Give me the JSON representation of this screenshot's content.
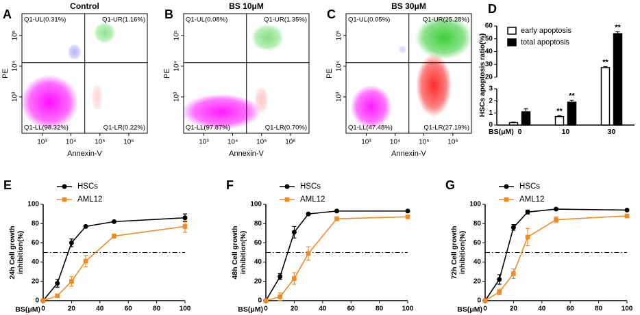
{
  "chart_data": [
    {
      "panel": "A",
      "type": "quadrant",
      "title": "Control",
      "xlabel": "Annexin-V",
      "ylabel": "PE",
      "xscale": "log",
      "yscale": "log",
      "xlim": [
        200,
        4400000
      ],
      "ylim": [
        66,
        510000
      ],
      "xticks": [
        {
          "value": 1000,
          "label": "10³"
        },
        {
          "value": 10000,
          "label": "10⁴"
        },
        {
          "value": 100000,
          "label": "10⁵"
        },
        {
          "value": 1000000,
          "label": "10⁶"
        }
      ],
      "yticks": [
        {
          "value": 1000,
          "label": "10³"
        },
        {
          "value": 10000,
          "label": "10⁴"
        },
        {
          "value": 100000,
          "label": "10⁵"
        }
      ],
      "gate": {
        "x": 30000,
        "y": 13000
      },
      "quadrants": {
        "UL": "Q1-UL(0.31%)",
        "UR": "Q1-UR(1.16%)",
        "LL": "Q1-LL(98.32%)",
        "LR": "Q1-LR(0.22%)"
      },
      "colors": {
        "UL": "#3030ff",
        "UR": "#33cc33",
        "LL": "#ff00ff",
        "LR": "#ff2020"
      }
    },
    {
      "panel": "B",
      "type": "quadrant",
      "title": "BS  10μM",
      "xlabel": "Annexin-V",
      "ylabel": "PE",
      "xscale": "log",
      "yscale": "log",
      "xlim": [
        200,
        4400000
      ],
      "ylim": [
        66,
        510000
      ],
      "xticks": [
        {
          "value": 1000,
          "label": "10³"
        },
        {
          "value": 10000,
          "label": "10⁴"
        },
        {
          "value": 100000,
          "label": "10⁵"
        },
        {
          "value": 1000000,
          "label": "10⁶"
        }
      ],
      "yticks": [
        {
          "value": 1000,
          "label": "10³"
        },
        {
          "value": 10000,
          "label": "10⁴"
        },
        {
          "value": 100000,
          "label": "10⁵"
        }
      ],
      "gate": {
        "x": 30000,
        "y": 13000
      },
      "quadrants": {
        "UL": "Q1-UL(0.08%)",
        "UR": "Q1-UR(1.35%)",
        "LL": "Q1-LL(97.87%)",
        "LR": "Q1-LR(0.70%)"
      },
      "colors": {
        "UL": "#3030ff",
        "UR": "#33cc33",
        "LL": "#ff00ff",
        "LR": "#ff2020"
      }
    },
    {
      "panel": "C",
      "type": "quadrant",
      "title": "BS  30μM",
      "xlabel": "Annexin-V",
      "ylabel": "PE",
      "xscale": "log",
      "yscale": "log",
      "xlim": [
        200,
        4400000
      ],
      "ylim": [
        66,
        510000
      ],
      "xticks": [
        {
          "value": 1000,
          "label": "10³"
        },
        {
          "value": 10000,
          "label": "10⁴"
        },
        {
          "value": 100000,
          "label": "10⁵"
        },
        {
          "value": 1000000,
          "label": "10⁶"
        }
      ],
      "yticks": [
        {
          "value": 1000,
          "label": "10³"
        },
        {
          "value": 10000,
          "label": "10⁴"
        },
        {
          "value": 100000,
          "label": "10⁵"
        }
      ],
      "gate": {
        "x": 30000,
        "y": 13000
      },
      "quadrants": {
        "UL": "Q1-UL(0.05%)",
        "UR": "Q1-UR(25.28%)",
        "LL": "Q1-LL(47.48%)",
        "LR": "Q1-LR(27.19%)"
      },
      "colors": {
        "UL": "#3030ff",
        "UR": "#33cc33",
        "LL": "#ff00ff",
        "LR": "#ff2020"
      }
    },
    {
      "panel": "D",
      "type": "bar",
      "xlabel": "BS(μM)",
      "ylabel": "HSCs apoptosis ratio(%)",
      "categories": [
        "0",
        "10",
        "30"
      ],
      "ylim": [
        0,
        60
      ],
      "axis_break": [
        3,
        20
      ],
      "yticks": [
        0,
        1,
        2,
        3,
        20,
        30,
        40,
        50,
        60
      ],
      "legend": "upper left",
      "series": [
        {
          "name": "early apoptosis",
          "color": "#ffffff",
          "edgecolor": "#000000",
          "values": [
            0.2,
            0.7,
            27.5
          ],
          "errors": [
            0.05,
            0.08,
            0.8
          ],
          "significance": [
            null,
            "**",
            "**"
          ]
        },
        {
          "name": "total apoptosis",
          "color": "#000000",
          "edgecolor": "#000000",
          "values": [
            1.1,
            1.9,
            54
          ],
          "errors": [
            0.25,
            0.15,
            1.5
          ],
          "significance": [
            null,
            "**",
            "**"
          ]
        }
      ]
    },
    {
      "panel": "E",
      "type": "line",
      "xlabel": "BS(μM)",
      "ylabel": [
        "24h Cell growth",
        "inhibition(%)"
      ],
      "x": [
        0,
        10,
        20,
        30,
        50,
        100
      ],
      "xlim": [
        0,
        100
      ],
      "xticks": [
        0,
        20,
        40,
        60,
        80,
        100
      ],
      "ylim": [
        0,
        100
      ],
      "yticks": [
        0,
        20,
        40,
        60,
        80,
        100
      ],
      "reference_line": 50,
      "legend": "upper left",
      "series": [
        {
          "name": "HSCs",
          "color": "#000000",
          "marker": "circle",
          "values": [
            0,
            18,
            60,
            77,
            82,
            86
          ],
          "errors": [
            0,
            4,
            4,
            1,
            1,
            4
          ]
        },
        {
          "name": "AML12",
          "color": "#f08a24",
          "marker": "square",
          "values": [
            0,
            5,
            20,
            41,
            67,
            77
          ],
          "errors": [
            0,
            1,
            5,
            6,
            2,
            6
          ]
        }
      ]
    },
    {
      "panel": "F",
      "type": "line",
      "xlabel": "BS(μM)",
      "ylabel": [
        "48h Cell growth",
        "inhibition(%)"
      ],
      "x": [
        0,
        10,
        20,
        30,
        50,
        100
      ],
      "xlim": [
        0,
        100
      ],
      "xticks": [
        0,
        20,
        40,
        60,
        80,
        100
      ],
      "ylim": [
        0,
        100
      ],
      "yticks": [
        0,
        20,
        40,
        60,
        80,
        100
      ],
      "reference_line": 50,
      "legend": "upper left",
      "series": [
        {
          "name": "HSCs",
          "color": "#000000",
          "marker": "circle",
          "values": [
            0,
            25,
            71,
            90,
            93,
            93
          ],
          "errors": [
            0,
            3,
            6,
            1,
            1,
            1
          ]
        },
        {
          "name": "AML12",
          "color": "#f08a24",
          "marker": "square",
          "values": [
            0,
            4,
            23,
            49,
            85,
            87
          ],
          "errors": [
            0,
            4,
            6,
            7,
            2,
            1
          ]
        }
      ]
    },
    {
      "panel": "G",
      "type": "line",
      "xlabel": "BS(μM)",
      "ylabel": [
        "72h Cell growth",
        "inhibition(%)"
      ],
      "x": [
        0,
        10,
        20,
        30,
        50,
        100
      ],
      "xlim": [
        0,
        100
      ],
      "xticks": [
        0,
        20,
        40,
        60,
        80,
        100
      ],
      "ylim": [
        0,
        100
      ],
      "yticks": [
        0,
        20,
        40,
        60,
        80,
        100
      ],
      "reference_line": 50,
      "legend": "upper left",
      "series": [
        {
          "name": "HSCs",
          "color": "#000000",
          "marker": "circle",
          "values": [
            0,
            22,
            76,
            92,
            95,
            94
          ],
          "errors": [
            0,
            5,
            3,
            2,
            1,
            1
          ]
        },
        {
          "name": "AML12",
          "color": "#f08a24",
          "marker": "square",
          "values": [
            0,
            9,
            28,
            66,
            84,
            88
          ],
          "errors": [
            0,
            3,
            5,
            9,
            3,
            1
          ]
        }
      ]
    }
  ]
}
